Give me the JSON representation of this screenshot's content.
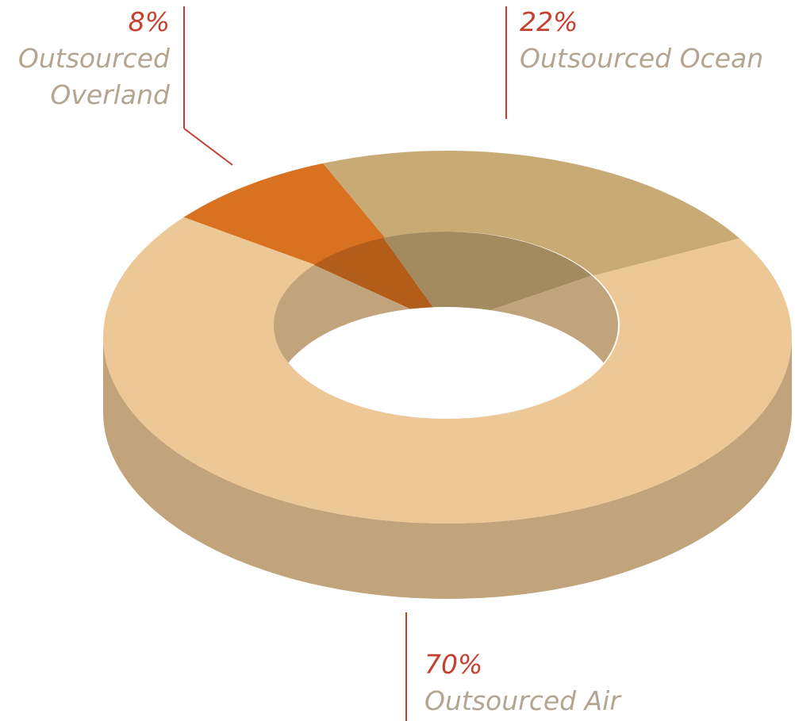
{
  "chart_data": {
    "type": "pie",
    "categories": [
      "Outsourced Overland",
      "Outsourced Ocean",
      "Outsourced Air"
    ],
    "values": [
      8,
      22,
      70
    ],
    "value_labels": [
      "8%",
      "22%",
      "70%"
    ],
    "colors": [
      "#d97220",
      "#c8aa74",
      "#ecc897"
    ]
  }
}
